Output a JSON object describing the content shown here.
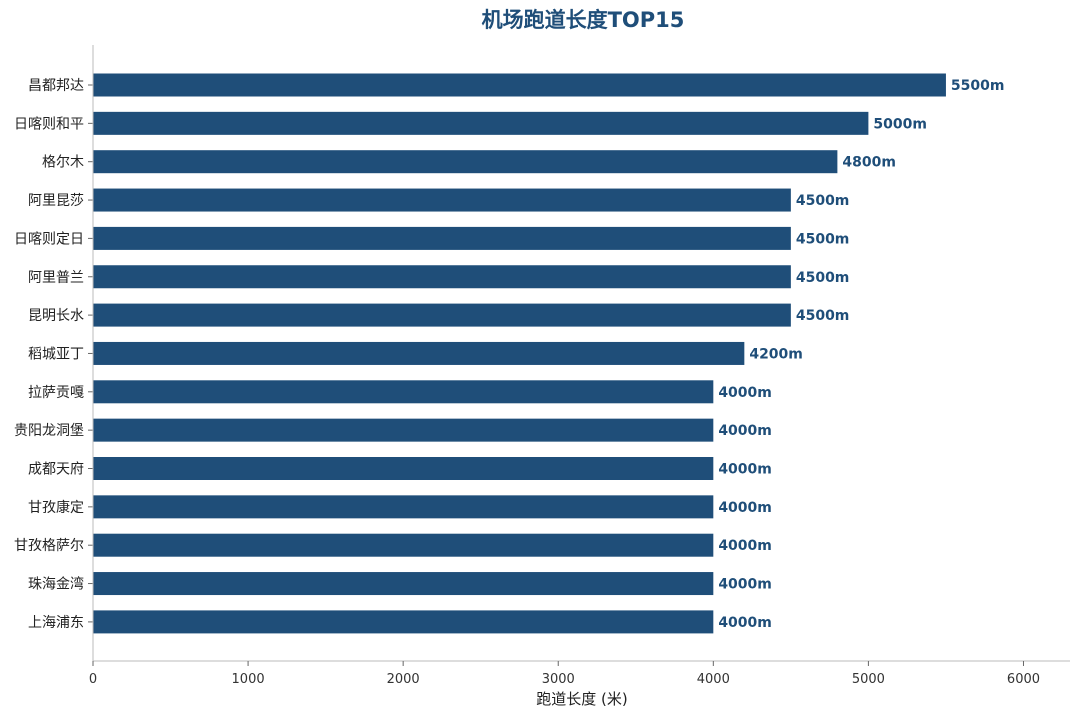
{
  "chart_data": {
    "type": "bar",
    "orientation": "horizontal",
    "title": "机场跑道长度TOP15",
    "xlabel": "跑道长度 (米)",
    "ylabel": "",
    "xlim": [
      0,
      6300
    ],
    "xticks": [
      0,
      1000,
      2000,
      3000,
      4000,
      5000,
      6000
    ],
    "xtick_labels": [
      "0",
      "1000",
      "2000",
      "3000",
      "4000",
      "5000",
      "6000"
    ],
    "categories": [
      "昌都邦达",
      "日喀则和平",
      "格尔木",
      "阿里昆莎",
      "日喀则定日",
      "阿里普兰",
      "昆明长水",
      "稻城亚丁",
      "拉萨贡嘎",
      "贵阳龙洞堡",
      "成都天府",
      "甘孜康定",
      "甘孜格萨尔",
      "珠海金湾",
      "上海浦东"
    ],
    "values": [
      5500,
      5000,
      4800,
      4500,
      4500,
      4500,
      4500,
      4200,
      4000,
      4000,
      4000,
      4000,
      4000,
      4000,
      4000
    ],
    "value_labels": [
      "5500m",
      "5000m",
      "4800m",
      "4500m",
      "4500m",
      "4500m",
      "4500m",
      "4200m",
      "4000m",
      "4000m",
      "4000m",
      "4000m",
      "4000m",
      "4000m",
      "4000m"
    ],
    "bar_color": "#1f4e79",
    "label_color": "#1f4e79",
    "grid": false,
    "legend": "none"
  }
}
